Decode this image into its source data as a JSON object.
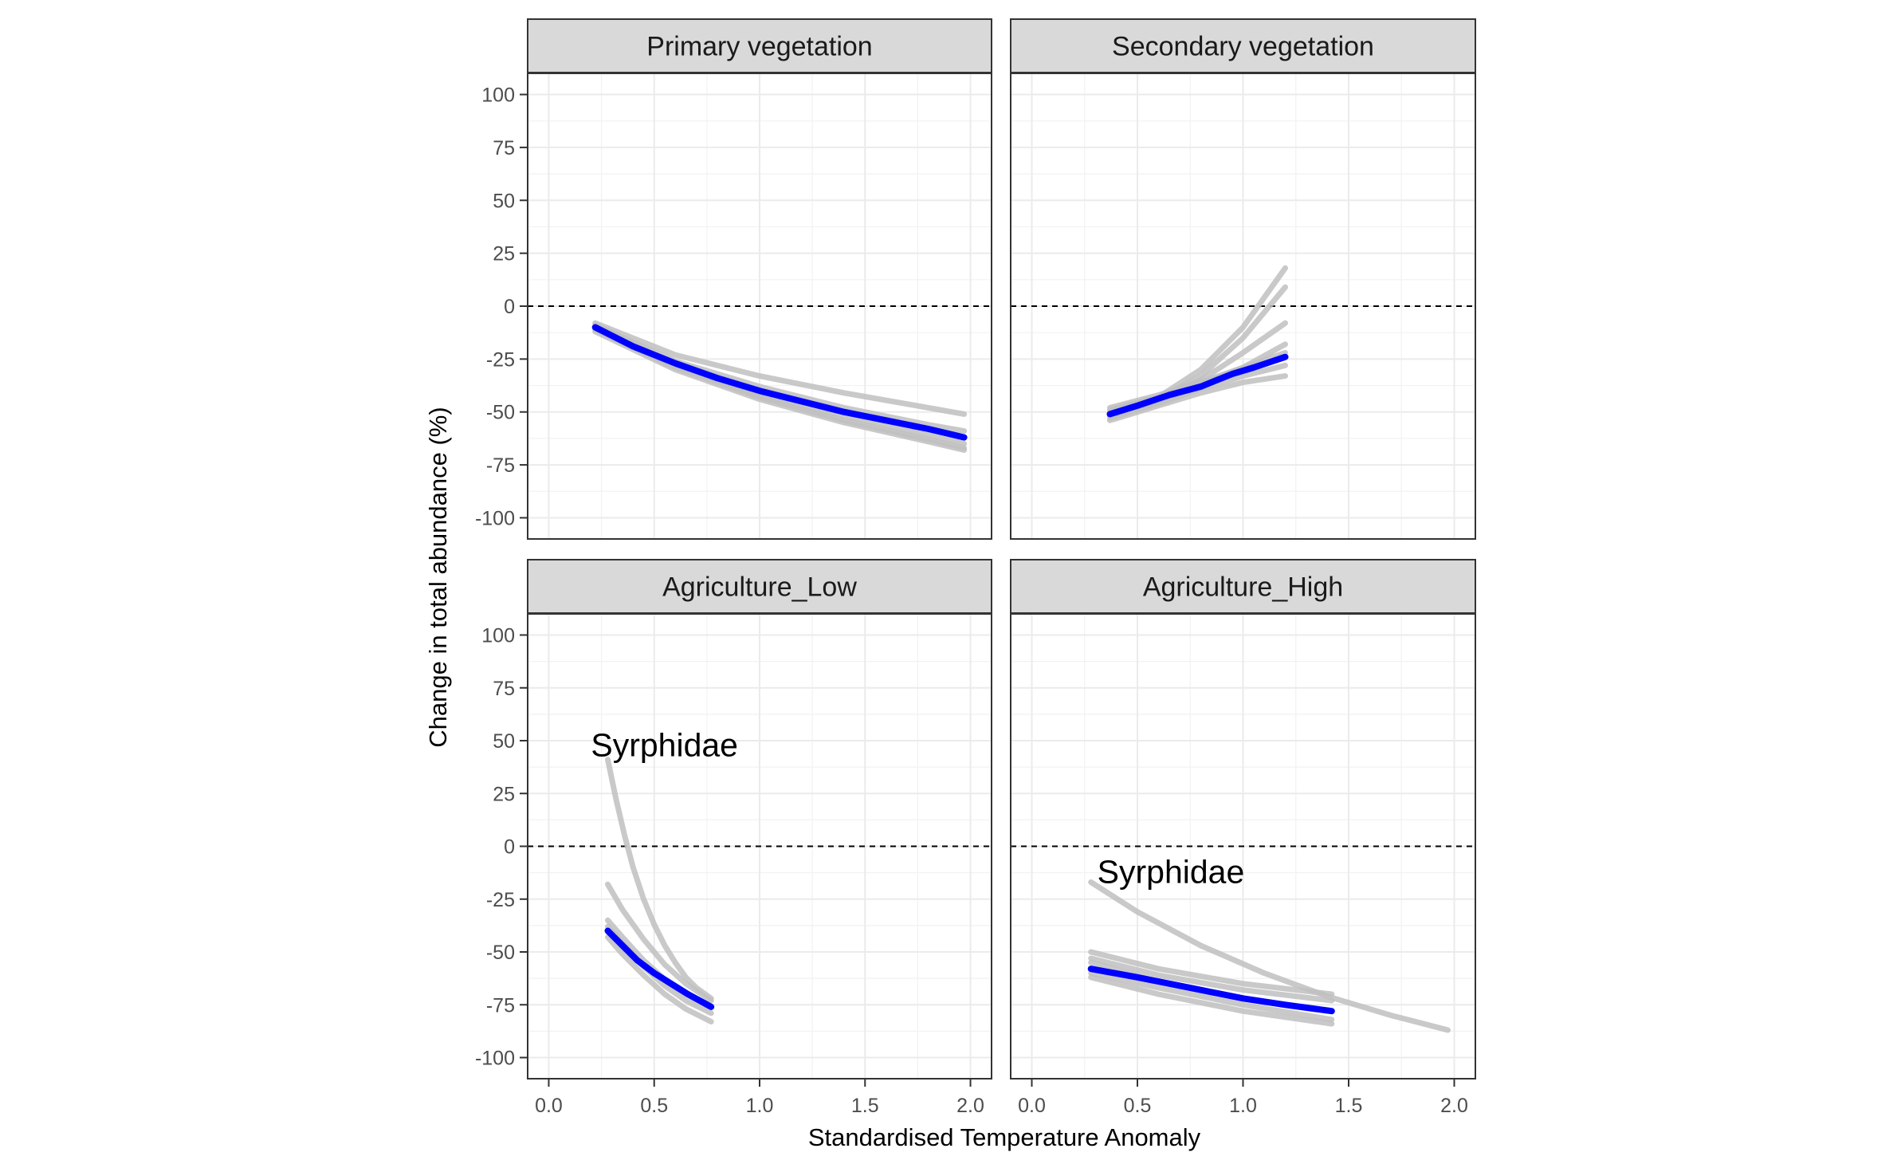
{
  "chart_data": {
    "type": "line",
    "layout": "facet-grid-2x2",
    "xlabel": "Standardised Temperature Anomaly",
    "ylabel": "Change in total abundance (%)",
    "xlim": [
      -0.1,
      2.1
    ],
    "ylim": [
      -110,
      110
    ],
    "x_ticks": [
      0.0,
      0.5,
      1.0,
      1.5,
      2.0
    ],
    "x_tick_labels": [
      "0.0",
      "0.5",
      "1.0",
      "1.5",
      "2.0"
    ],
    "y_ticks": [
      100,
      75,
      50,
      25,
      0,
      -25,
      -50,
      -75,
      -100
    ],
    "y_tick_labels": [
      "100",
      "75",
      "50",
      "25",
      "0",
      "-25",
      "-50",
      "-75",
      "-100"
    ],
    "reference_line": {
      "y": 0,
      "style": "dashed",
      "color": "#000000"
    },
    "grid": true,
    "colors": {
      "main": "#0000ff",
      "jackknife": "#bfbfbf",
      "strip_bg": "#d9d9d9"
    },
    "panels": [
      {
        "title": "Primary vegetation",
        "main": {
          "x": [
            0.22,
            0.4,
            0.6,
            0.8,
            1.0,
            1.2,
            1.4,
            1.6,
            1.8,
            1.97
          ],
          "y": [
            -10,
            -19,
            -27,
            -34,
            -40,
            -45,
            -50,
            -54,
            -58,
            -62
          ]
        },
        "others": [
          {
            "x": [
              0.22,
              0.6,
              1.0,
              1.4,
              1.8,
              1.97
            ],
            "y": [
              -8,
              -23,
              -33,
              -41,
              -48,
              -51
            ]
          },
          {
            "x": [
              0.22,
              0.6,
              1.0,
              1.4,
              1.8,
              1.97
            ],
            "y": [
              -9,
              -26,
              -38,
              -48,
              -56,
              -59
            ]
          },
          {
            "x": [
              0.22,
              0.6,
              1.0,
              1.4,
              1.8,
              1.97
            ],
            "y": [
              -10,
              -27,
              -40,
              -50,
              -58,
              -62
            ]
          },
          {
            "x": [
              0.22,
              0.6,
              1.0,
              1.4,
              1.8,
              1.97
            ],
            "y": [
              -11,
              -28,
              -42,
              -52,
              -61,
              -65
            ]
          },
          {
            "x": [
              0.22,
              0.6,
              1.0,
              1.4,
              1.8,
              1.97
            ],
            "y": [
              -12,
              -30,
              -44,
              -55,
              -64,
              -68
            ]
          },
          {
            "x": [
              0.22,
              0.6,
              1.0,
              1.4,
              1.8,
              1.97
            ],
            "y": [
              -11,
              -29,
              -43,
              -54,
              -63,
              -67
            ]
          }
        ],
        "annotation": null
      },
      {
        "title": "Secondary vegetation",
        "main": {
          "x": [
            0.37,
            0.5,
            0.65,
            0.8,
            0.95,
            1.05,
            1.2
          ],
          "y": [
            -51,
            -47,
            -42,
            -38,
            -32,
            -29,
            -24
          ]
        },
        "others": [
          {
            "x": [
              0.37,
              0.6,
              0.8,
              1.0,
              1.2
            ],
            "y": [
              -50,
              -43,
              -30,
              -10,
              18
            ]
          },
          {
            "x": [
              0.37,
              0.6,
              0.8,
              1.0,
              1.2
            ],
            "y": [
              -51,
              -44,
              -33,
              -15,
              9
            ]
          },
          {
            "x": [
              0.37,
              0.6,
              0.8,
              1.0,
              1.2
            ],
            "y": [
              -49,
              -43,
              -35,
              -22,
              -8
            ]
          },
          {
            "x": [
              0.37,
              0.6,
              0.8,
              1.0,
              1.2
            ],
            "y": [
              -52,
              -45,
              -37,
              -29,
              -18
            ]
          },
          {
            "x": [
              0.37,
              0.6,
              0.8,
              1.0,
              1.2
            ],
            "y": [
              -53,
              -46,
              -39,
              -33,
              -28
            ]
          },
          {
            "x": [
              0.37,
              0.6,
              0.8,
              1.0,
              1.2
            ],
            "y": [
              -54,
              -47,
              -41,
              -36,
              -33
            ]
          },
          {
            "x": [
              0.37,
              0.6,
              0.8,
              1.0,
              1.2
            ],
            "y": [
              -48,
              -42,
              -36,
              -29,
              -22
            ]
          }
        ],
        "annotation": null
      },
      {
        "title": "Agriculture_Low",
        "main": {
          "x": [
            0.28,
            0.35,
            0.42,
            0.5,
            0.58,
            0.66,
            0.77
          ],
          "y": [
            -40,
            -47,
            -54,
            -60,
            -65,
            -70,
            -76
          ]
        },
        "others": [
          {
            "x": [
              0.28,
              0.32,
              0.36,
              0.4,
              0.45,
              0.5,
              0.55,
              0.6,
              0.65,
              0.7,
              0.77
            ],
            "y": [
              41,
              22,
              5,
              -10,
              -25,
              -37,
              -47,
              -55,
              -62,
              -67,
              -72
            ]
          },
          {
            "x": [
              0.28,
              0.35,
              0.45,
              0.55,
              0.65,
              0.77
            ],
            "y": [
              -18,
              -30,
              -44,
              -56,
              -65,
              -73
            ]
          },
          {
            "x": [
              0.28,
              0.35,
              0.45,
              0.55,
              0.65,
              0.77
            ],
            "y": [
              -35,
              -43,
              -54,
              -63,
              -70,
              -76
            ]
          },
          {
            "x": [
              0.28,
              0.35,
              0.45,
              0.55,
              0.65,
              0.77
            ],
            "y": [
              -38,
              -46,
              -57,
              -66,
              -73,
              -79
            ]
          },
          {
            "x": [
              0.28,
              0.35,
              0.45,
              0.55,
              0.65,
              0.77
            ],
            "y": [
              -43,
              -51,
              -61,
              -70,
              -77,
              -83
            ]
          }
        ],
        "annotation": {
          "text": "Syrphidae",
          "x": 0.2,
          "y": 48
        }
      },
      {
        "title": "Agriculture_High",
        "main": {
          "x": [
            0.28,
            0.5,
            0.8,
            1.0,
            1.2,
            1.42
          ],
          "y": [
            -58,
            -62,
            -68,
            -72,
            -75,
            -78
          ]
        },
        "others": [
          {
            "x": [
              0.28,
              0.5,
              0.8,
              1.1,
              1.4,
              1.7,
              1.97
            ],
            "y": [
              -17,
              -31,
              -47,
              -60,
              -71,
              -80,
              -87
            ]
          },
          {
            "x": [
              0.28,
              0.6,
              1.0,
              1.42
            ],
            "y": [
              -50,
              -58,
              -65,
              -70
            ]
          },
          {
            "x": [
              0.28,
              0.6,
              1.0,
              1.42
            ],
            "y": [
              -53,
              -61,
              -68,
              -73
            ]
          },
          {
            "x": [
              0.28,
              0.6,
              1.0,
              1.42
            ],
            "y": [
              -55,
              -64,
              -72,
              -78
            ]
          },
          {
            "x": [
              0.28,
              0.6,
              1.0,
              1.42
            ],
            "y": [
              -60,
              -67,
              -75,
              -82
            ]
          },
          {
            "x": [
              0.28,
              0.6,
              1.0,
              1.42
            ],
            "y": [
              -62,
              -70,
              -78,
              -84
            ]
          }
        ],
        "annotation": {
          "text": "Syrphidae",
          "x": 0.31,
          "y": -12
        }
      }
    ]
  }
}
